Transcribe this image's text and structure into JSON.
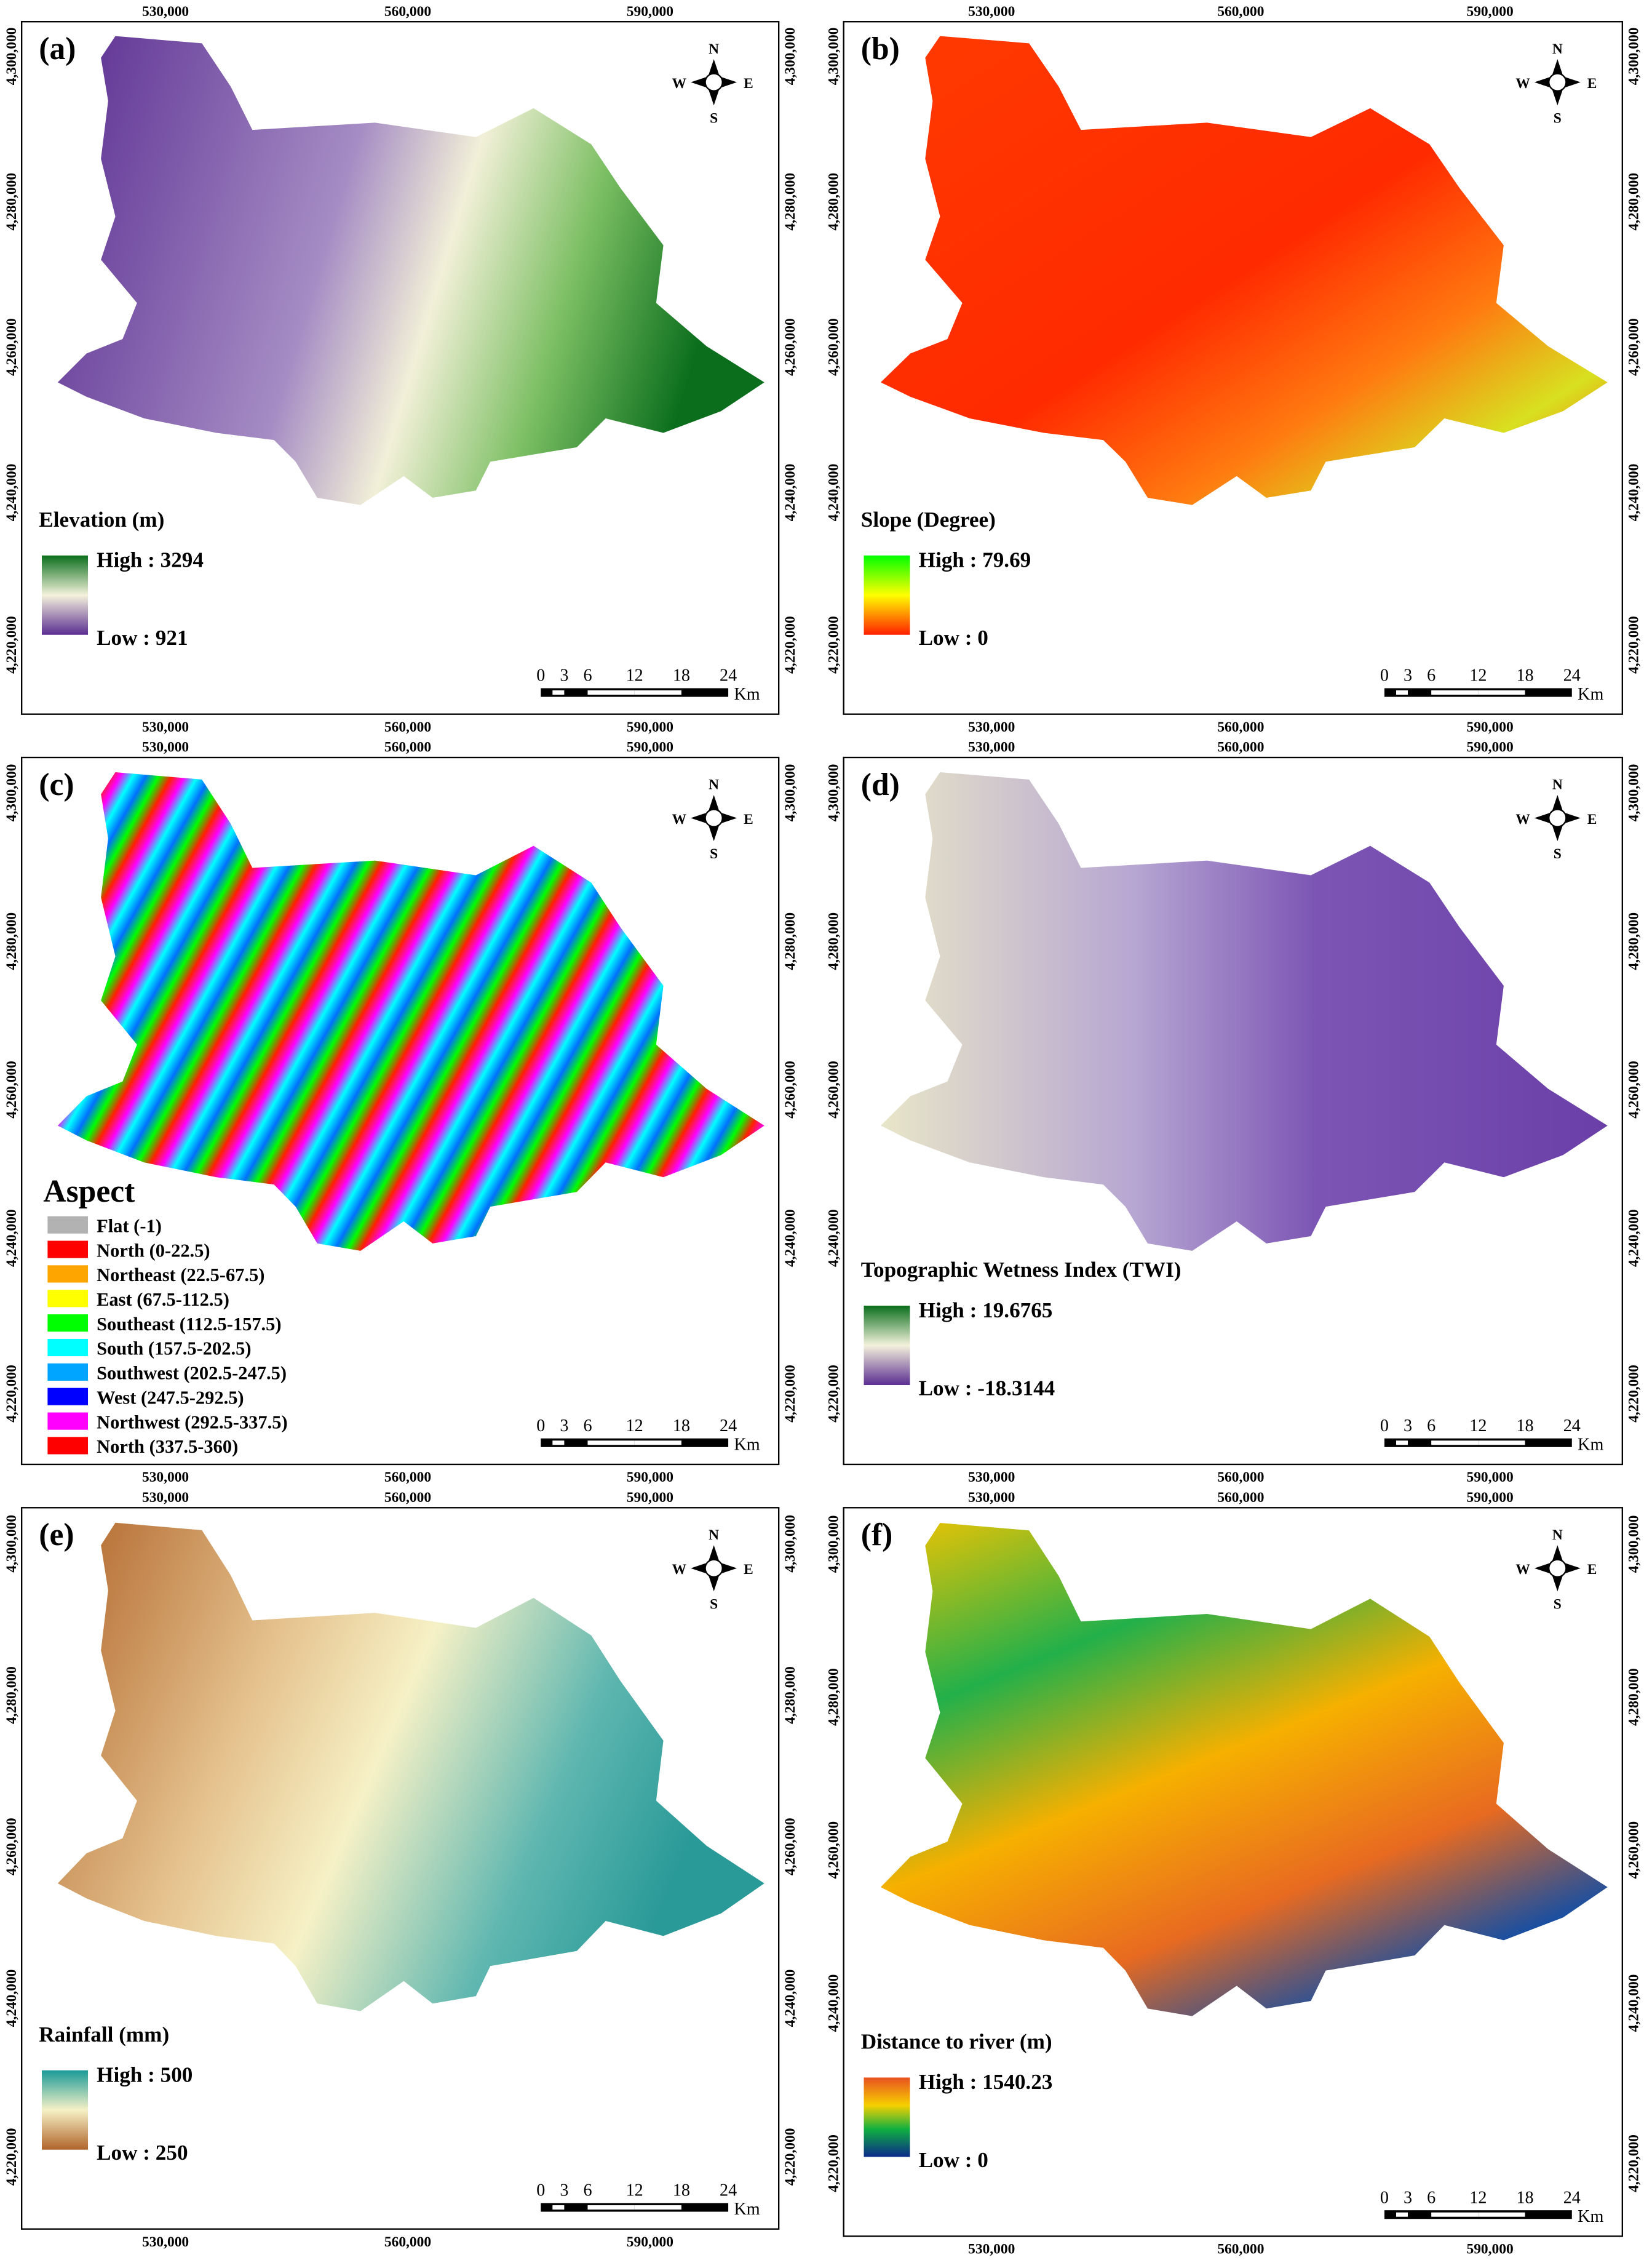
{
  "x_ticks": [
    "530,000",
    "560,000",
    "590,000"
  ],
  "y_ticks": [
    "4,300,000",
    "4,280,000",
    "4,260,000",
    "4,240,000",
    "4,220,000"
  ],
  "compass": {
    "n": "N",
    "s": "S",
    "e": "E",
    "w": "W"
  },
  "scale_bar": {
    "labels": [
      "0",
      "3",
      "6",
      "12",
      "18",
      "24"
    ],
    "unit": "Km"
  },
  "panels": [
    {
      "label": "(a)",
      "legend_title": "Elevation (m)",
      "high": "High : 3294",
      "low": "Low : 921"
    },
    {
      "label": "(b)",
      "legend_title": "Slope (Degree)",
      "high": "High : 79.69",
      "low": "Low : 0"
    },
    {
      "label": "(c)",
      "legend_title": "Aspect",
      "legend_items": [
        {
          "label": "Flat (-1)",
          "color": "#b2b2b2"
        },
        {
          "label": "North (0-22.5)",
          "color": "#ff0000"
        },
        {
          "label": "Northeast (22.5-67.5)",
          "color": "#ffa500"
        },
        {
          "label": "East (67.5-112.5)",
          "color": "#ffff00"
        },
        {
          "label": "Southeast (112.5-157.5)",
          "color": "#00ff00"
        },
        {
          "label": "South (157.5-202.5)",
          "color": "#00ffff"
        },
        {
          "label": "Southwest (202.5-247.5)",
          "color": "#00a5ff"
        },
        {
          "label": "West (247.5-292.5)",
          "color": "#0000ff"
        },
        {
          "label": "Northwest (292.5-337.5)",
          "color": "#ff00ff"
        },
        {
          "label": "North (337.5-360)",
          "color": "#ff0000"
        }
      ]
    },
    {
      "label": "(d)",
      "legend_title": "Topographic Wetness Index (TWI)",
      "high": "High : 19.6765",
      "low": "Low : -18.3144"
    },
    {
      "label": "(e)",
      "legend_title": "Rainfall (mm)",
      "high": "High : 500",
      "low": "Low : 250"
    },
    {
      "label": "(f)",
      "legend_title": "Distance to river (m)",
      "high": "High : 1540.23",
      "low": "Low : 0"
    }
  ]
}
